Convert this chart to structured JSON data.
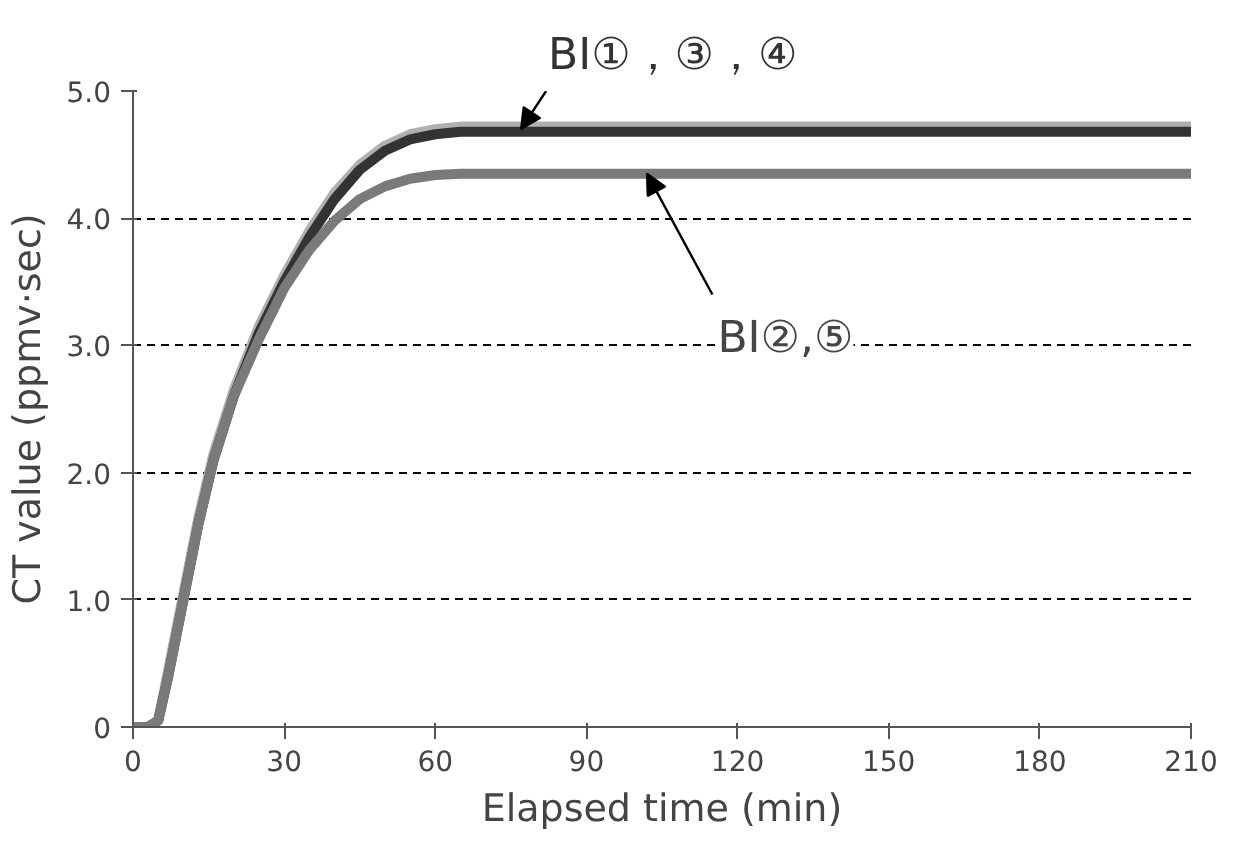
{
  "chart_data": {
    "type": "line",
    "xlabel": "Elapsed time (min)",
    "ylabel": "CT value (ppmv·sec)",
    "x": [
      0,
      3,
      5,
      7,
      10,
      13,
      16,
      20,
      25,
      30,
      35,
      40,
      45,
      50,
      55,
      60,
      65,
      70,
      210
    ],
    "series": [
      {
        "color": "#b0b0b0",
        "values": [
          0,
          0,
          0.05,
          0.45,
          1.05,
          1.65,
          2.15,
          2.65,
          3.15,
          3.55,
          3.9,
          4.2,
          4.42,
          4.57,
          4.66,
          4.7,
          4.72,
          4.72,
          4.72
        ]
      },
      {
        "color": "#333333",
        "values": [
          0,
          0,
          0.05,
          0.4,
          1.0,
          1.6,
          2.1,
          2.6,
          3.1,
          3.5,
          3.85,
          4.15,
          4.38,
          4.53,
          4.62,
          4.66,
          4.68,
          4.68,
          4.68
        ]
      },
      {
        "color": "#7a7a7a",
        "values": [
          0,
          0,
          0.05,
          0.4,
          1.0,
          1.6,
          2.1,
          2.6,
          3.05,
          3.45,
          3.75,
          3.98,
          4.15,
          4.25,
          4.31,
          4.34,
          4.35,
          4.35,
          4.35
        ]
      }
    ],
    "xlim": [
      0,
      210
    ],
    "xticks": [
      0,
      30,
      60,
      90,
      120,
      150,
      180,
      210
    ],
    "ylim": [
      0,
      5
    ],
    "yticks": [
      0,
      {
        "value": 1,
        "label": "1.0"
      },
      {
        "value": 2,
        "label": "2.0"
      },
      {
        "value": 3,
        "label": "3.0"
      },
      {
        "value": 4,
        "label": "4.0"
      },
      {
        "value": 5,
        "label": "5.0"
      }
    ],
    "grid": "y",
    "line_style": "solid",
    "marker": "none",
    "annotations": [
      {
        "text": "BI①，③，④",
        "x": 77,
        "y": 4.7
      },
      {
        "text": "BI②,⑤",
        "x": 102,
        "y": 4.35
      }
    ]
  }
}
